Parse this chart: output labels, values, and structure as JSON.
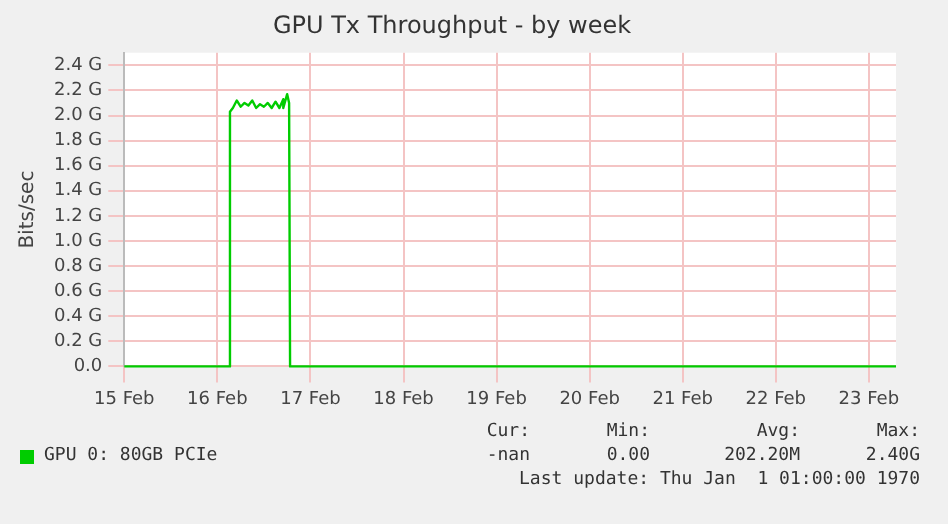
{
  "chart_data": {
    "type": "line",
    "title": "GPU Tx Throughput - by week",
    "ylabel": "Bits/sec",
    "x": [
      "--02-15T00:00",
      "--02-16T03:00",
      "--02-16T03:15",
      "--02-16T04:00",
      "--02-16T05:00",
      "--02-16T06:00",
      "--02-16T07:00",
      "--02-16T08:00",
      "--02-16T09:00",
      "--02-16T10:00",
      "--02-16T11:00",
      "--02-16T12:00",
      "--02-16T13:00",
      "--02-16T14:00",
      "--02-16T15:00",
      "--02-16T16:00",
      "--02-16T17:00",
      "--02-16T17:00",
      "--02-16T18:00",
      "--02-16T18:30",
      "--02-16T18:45",
      "--02-23T07:00"
    ],
    "series": [
      {
        "name": "GPU 0: 80GB PCIe",
        "color": "#00cc00",
        "values": [
          0,
          0,
          2.03,
          2.06,
          2.12,
          2.07,
          2.1,
          2.08,
          2.12,
          2.06,
          2.09,
          2.07,
          2.1,
          2.06,
          2.11,
          2.06,
          2.13,
          2.06,
          2.17,
          2.1,
          0,
          0
        ]
      }
    ],
    "xlim": [
      "--02-15T00:00",
      "--02-23T07:00"
    ],
    "xticks": [
      {
        "value": "--02-15",
        "label": "15 Feb"
      },
      {
        "value": "--02-16",
        "label": "16 Feb"
      },
      {
        "value": "--02-17",
        "label": "17 Feb"
      },
      {
        "value": "--02-18",
        "label": "18 Feb"
      },
      {
        "value": "--02-19",
        "label": "19 Feb"
      },
      {
        "value": "--02-20",
        "label": "20 Feb"
      },
      {
        "value": "--02-21",
        "label": "21 Feb"
      },
      {
        "value": "--02-22",
        "label": "22 Feb"
      },
      {
        "value": "--02-23",
        "label": "23 Feb"
      }
    ],
    "ylim": [
      0,
      2.5
    ],
    "yticks": [
      {
        "value": 0,
        "label": "0.0"
      },
      {
        "value": 0.2,
        "label": "0.2 G"
      },
      {
        "value": 0.4,
        "label": "0.4 G"
      },
      {
        "value": 0.6,
        "label": "0.6 G"
      },
      {
        "value": 0.8,
        "label": "0.8 G"
      },
      {
        "value": 1.0,
        "label": "1.0 G"
      },
      {
        "value": 1.2,
        "label": "1.2 G"
      },
      {
        "value": 1.4,
        "label": "1.4 G"
      },
      {
        "value": 1.6,
        "label": "1.6 G"
      },
      {
        "value": 1.8,
        "label": "1.8 G"
      },
      {
        "value": 2.0,
        "label": "2.0 G"
      },
      {
        "value": 2.2,
        "label": "2.2 G"
      },
      {
        "value": 2.4,
        "label": "2.4 G"
      }
    ],
    "grid": true,
    "legend": "bottom",
    "marker": "none",
    "line_style": "solid",
    "annotations": [
      "Cur:",
      "Min:",
      "Avg:",
      "Max:",
      "-nan",
      "0.00",
      "202.20M",
      "2.40G",
      "Last update: Thu Jan  1 01:00:00 1970"
    ]
  }
}
